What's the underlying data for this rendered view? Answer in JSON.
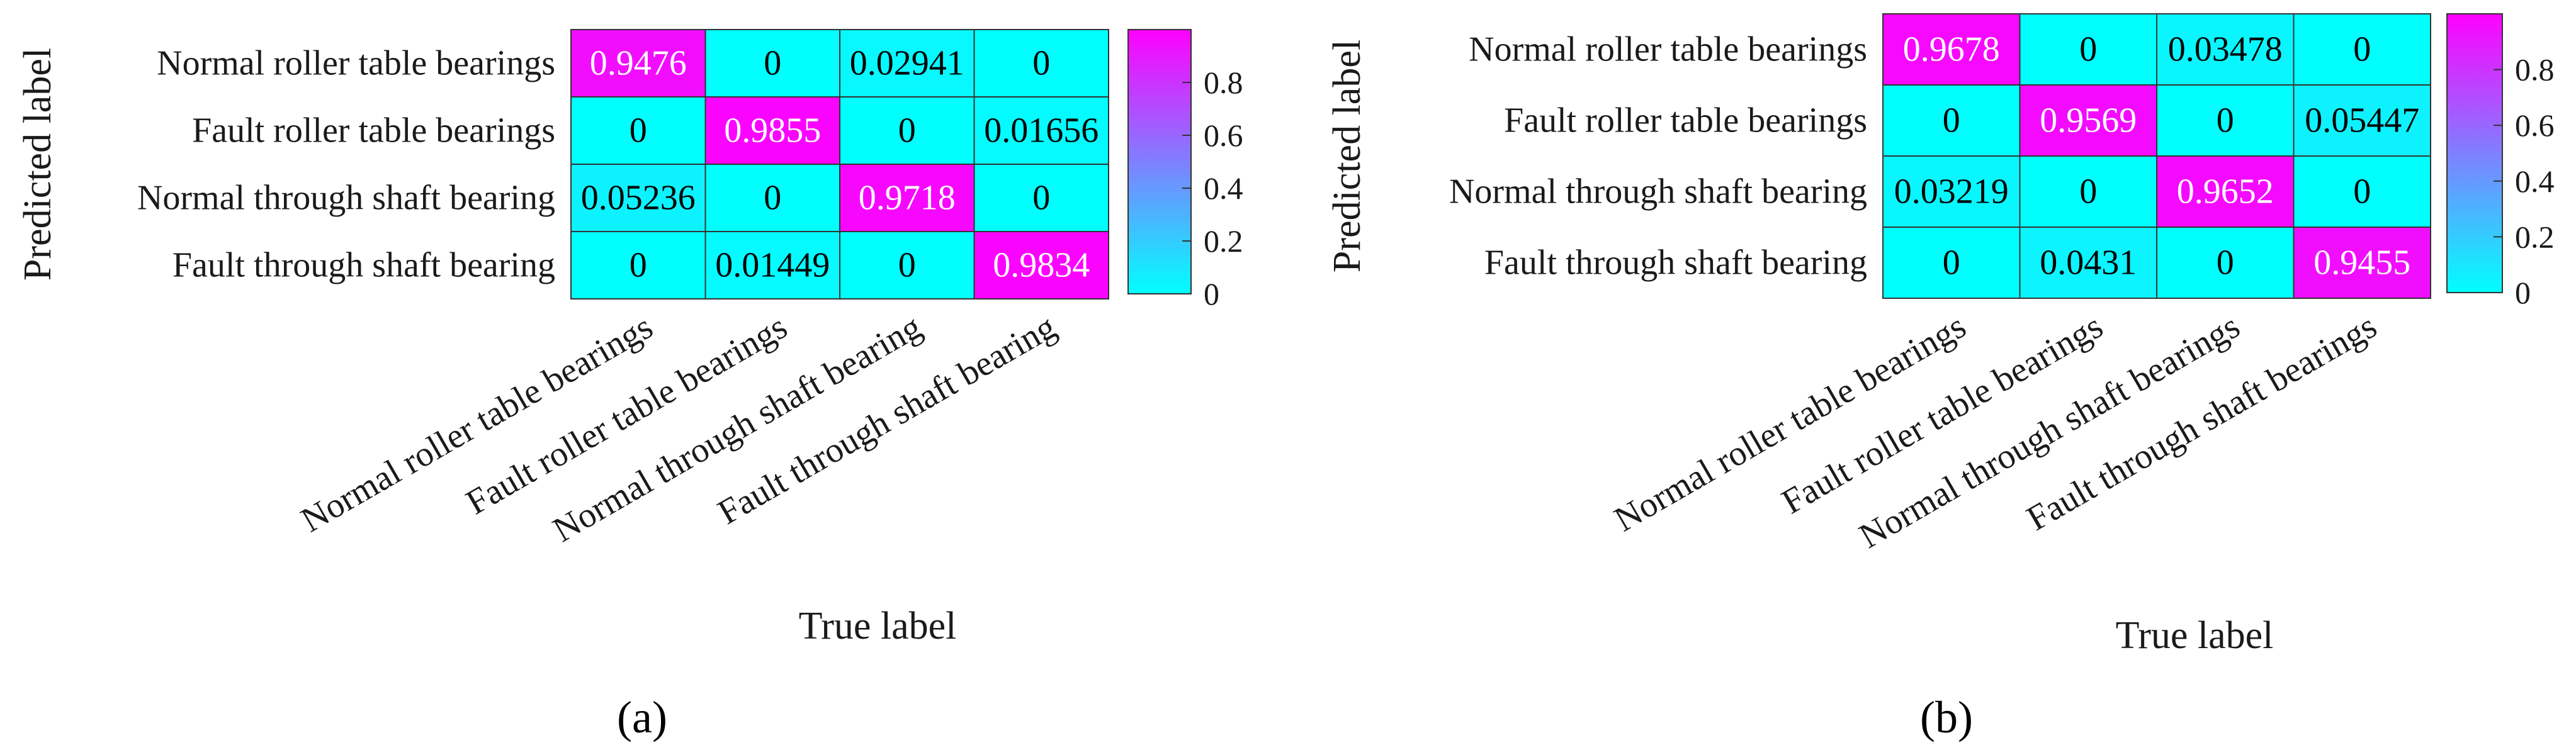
{
  "chart_data": [
    {
      "type": "heatmap",
      "panel_label": "(a)",
      "xlabel": "True label",
      "ylabel": "Predicted label",
      "x_categories": [
        "Normal roller table bearings",
        "Fault roller table bearings",
        "Normal through shaft bearing",
        "Fault through shaft bearing"
      ],
      "y_categories": [
        "Normal roller table bearings",
        "Fault roller table bearings",
        "Normal through shaft bearing",
        "Fault through shaft bearing"
      ],
      "values": [
        [
          0.9476,
          0,
          0.02941,
          0
        ],
        [
          0,
          0.9855,
          0,
          0.01656
        ],
        [
          0.05236,
          0,
          0.9718,
          0
        ],
        [
          0,
          0.01449,
          0,
          0.9834
        ]
      ],
      "value_labels": [
        [
          "0.9476",
          "0",
          "0.02941",
          "0"
        ],
        [
          "0",
          "0.9855",
          "0",
          "0.01656"
        ],
        [
          "0.05236",
          "0",
          "0.9718",
          "0"
        ],
        [
          "0",
          "0.01449",
          "0",
          "0.9834"
        ]
      ],
      "colorbar": {
        "min": 0,
        "max": 1,
        "ticks": [
          0,
          0.2,
          0.4,
          0.6,
          0.8
        ],
        "tick_labels": [
          "0",
          "0.2",
          "0.4",
          "0.6",
          "0.8"
        ],
        "color_low": "#00ffff",
        "color_high": "#ff00ff"
      }
    },
    {
      "type": "heatmap",
      "panel_label": "(b)",
      "xlabel": "True label",
      "ylabel": "Predicted label",
      "x_categories": [
        "Normal roller table bearings",
        "Fault roller table bearings",
        "Normal through shaft bearings",
        "Fault through shaft bearings"
      ],
      "y_categories": [
        "Normal roller table bearings",
        "Fault roller table bearings",
        "Normal through shaft bearing",
        "Fault through shaft bearing"
      ],
      "values": [
        [
          0.9678,
          0,
          0.03478,
          0
        ],
        [
          0,
          0.9569,
          0,
          0.05447
        ],
        [
          0.03219,
          0,
          0.9652,
          0
        ],
        [
          0,
          0.0431,
          0,
          0.9455
        ]
      ],
      "value_labels": [
        [
          "0.9678",
          "0",
          "0.03478",
          "0"
        ],
        [
          "0",
          "0.9569",
          "0",
          "0.05447"
        ],
        [
          "0.03219",
          "0",
          "0.9652",
          "0"
        ],
        [
          "0",
          "0.0431",
          "0",
          "0.9455"
        ]
      ],
      "colorbar": {
        "min": 0,
        "max": 1,
        "ticks": [
          0,
          0.2,
          0.4,
          0.6,
          0.8
        ],
        "tick_labels": [
          "0",
          "0.2",
          "0.4",
          "0.6",
          "0.8"
        ],
        "color_low": "#00ffff",
        "color_high": "#ff00ff"
      }
    }
  ]
}
